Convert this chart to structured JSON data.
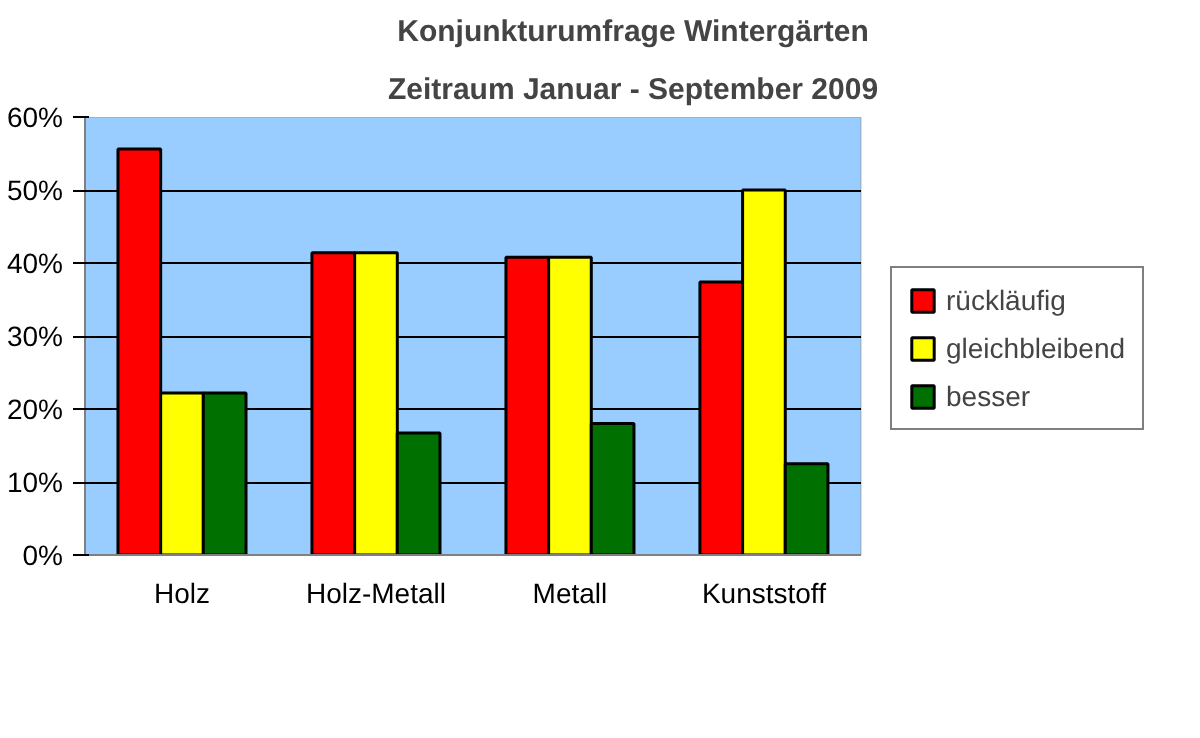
{
  "chart_data": {
    "type": "bar",
    "title": "Konjunkturumfrage Wintergärten",
    "subtitle": "Zeitraum Januar - September 2009",
    "categories": [
      "Holz",
      "Holz-Metall",
      "Metall",
      "Kunststoff"
    ],
    "series": [
      {
        "name": "rückläufig",
        "color": "#ff0000",
        "values": [
          55.6,
          41.4,
          40.8,
          37.4
        ]
      },
      {
        "name": "gleichbleibend",
        "color": "#ffff00",
        "values": [
          22.2,
          41.4,
          40.8,
          50.0
        ]
      },
      {
        "name": "besser",
        "color": "#007000",
        "values": [
          22.2,
          16.7,
          18.0,
          12.5
        ]
      }
    ],
    "ylim": [
      0,
      60
    ],
    "yticks": [
      {
        "value": 0,
        "label": "0%"
      },
      {
        "value": 10,
        "label": "10%"
      },
      {
        "value": 20,
        "label": "20%"
      },
      {
        "value": 30,
        "label": "30%"
      },
      {
        "value": 40,
        "label": "40%"
      },
      {
        "value": 50,
        "label": "50%"
      },
      {
        "value": 60,
        "label": "60%"
      }
    ],
    "grid": "y",
    "legend": "right"
  }
}
